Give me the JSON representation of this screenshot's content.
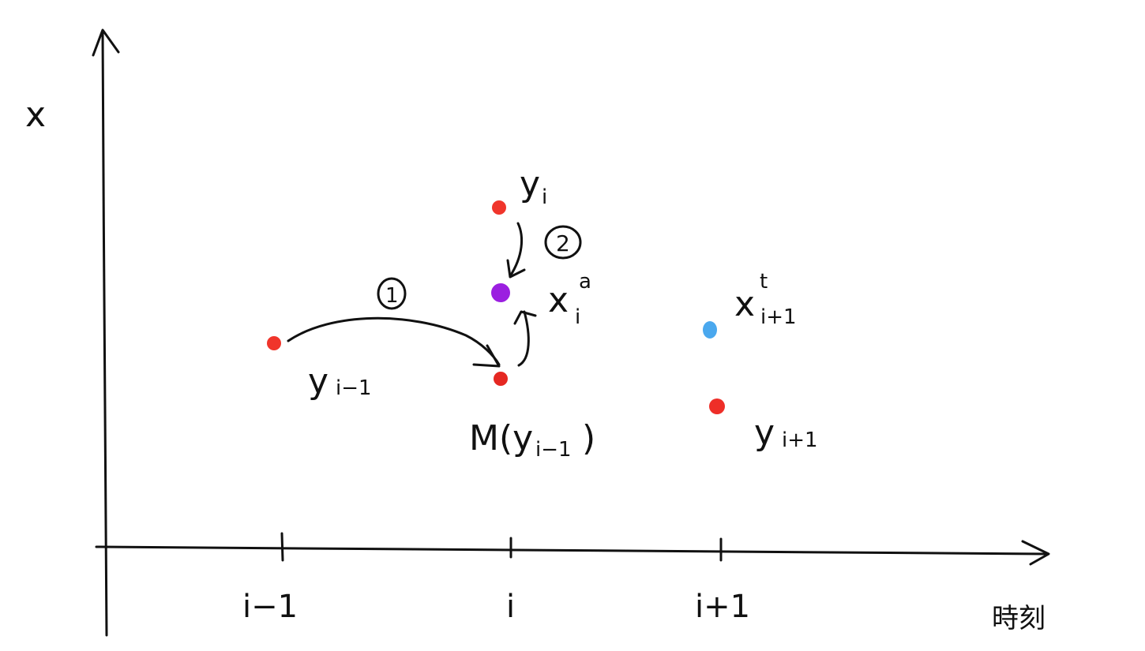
{
  "axes": {
    "y_label": "x",
    "x_label": "時刻",
    "ticks": [
      "i−1",
      "i",
      "i+1"
    ]
  },
  "points": {
    "y_prev": {
      "base": "y",
      "sub": "i−1",
      "color": "#f0352b"
    },
    "model_forecast": {
      "text": "M(y",
      "sub": "i−1",
      "close": ")",
      "color": "#e52822"
    },
    "y_i": {
      "base": "y",
      "sub": "i",
      "color": "#f0352b"
    },
    "x_analysis": {
      "base": "x",
      "sup": "a",
      "sub": "i",
      "color": "#9b1fe0"
    },
    "x_true_next": {
      "base": "x",
      "sup": "t",
      "sub": "i+1",
      "color": "#4aa8ee"
    },
    "y_next": {
      "base": "y",
      "sub": "i+1",
      "color": "#ee2e28"
    }
  },
  "steps": {
    "step1": "1",
    "step2": "2"
  }
}
